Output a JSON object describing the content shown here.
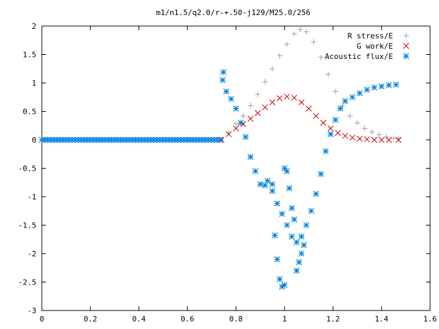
{
  "chart_data": {
    "type": "scatter",
    "title": "m1/n1.5/q2.0/r-+.50-j129/M25.0/256",
    "xlabel": "",
    "ylabel": "",
    "xlim": [
      0,
      1.6
    ],
    "ylim": [
      -3,
      2
    ],
    "x_ticks": [
      0,
      0.2,
      0.4,
      0.6,
      0.8,
      1,
      1.2,
      1.4,
      1.6
    ],
    "y_ticks": [
      -3,
      -2.5,
      -2,
      -1.5,
      -1,
      -0.5,
      0,
      0.5,
      1,
      1.5,
      2
    ],
    "grid": false,
    "legend_position": "top-right",
    "series": [
      {
        "name": "R stress/E",
        "marker": "plus",
        "color": "#a0a0a0",
        "points": [
          [
            0.74,
            0.0
          ],
          [
            0.77,
            0.12
          ],
          [
            0.8,
            0.28
          ],
          [
            0.83,
            0.42
          ],
          [
            0.86,
            0.6
          ],
          [
            0.89,
            0.8
          ],
          [
            0.92,
            1.02
          ],
          [
            0.95,
            1.25
          ],
          [
            0.98,
            1.48
          ],
          [
            1.01,
            1.68
          ],
          [
            1.04,
            1.86
          ],
          [
            1.065,
            1.94
          ],
          [
            1.09,
            1.9
          ],
          [
            1.12,
            1.72
          ],
          [
            1.15,
            1.45
          ],
          [
            1.18,
            1.15
          ],
          [
            1.21,
            0.85
          ],
          [
            1.24,
            0.6
          ],
          [
            1.27,
            0.42
          ],
          [
            1.3,
            0.3
          ],
          [
            1.33,
            0.2
          ],
          [
            1.36,
            0.14
          ],
          [
            1.39,
            0.09
          ],
          [
            1.42,
            0.05
          ],
          [
            1.45,
            0.03
          ],
          [
            1.47,
            0.02
          ]
        ]
      },
      {
        "name": "G work/E",
        "marker": "cross",
        "color": "#cc0000",
        "points": [
          [
            0.74,
            0.0
          ],
          [
            0.77,
            0.1
          ],
          [
            0.8,
            0.2
          ],
          [
            0.83,
            0.28
          ],
          [
            0.86,
            0.37
          ],
          [
            0.89,
            0.47
          ],
          [
            0.92,
            0.57
          ],
          [
            0.95,
            0.66
          ],
          [
            0.98,
            0.73
          ],
          [
            1.01,
            0.76
          ],
          [
            1.04,
            0.74
          ],
          [
            1.07,
            0.66
          ],
          [
            1.1,
            0.55
          ],
          [
            1.13,
            0.42
          ],
          [
            1.16,
            0.3
          ],
          [
            1.19,
            0.2
          ],
          [
            1.22,
            0.12
          ],
          [
            1.25,
            0.07
          ],
          [
            1.28,
            0.04
          ],
          [
            1.31,
            0.02
          ],
          [
            1.34,
            0.01
          ],
          [
            1.37,
            0.0
          ],
          [
            1.4,
            0.0
          ],
          [
            1.43,
            0.0
          ],
          [
            1.47,
            0.0
          ]
        ]
      },
      {
        "name": "Acoustic flux/E",
        "marker": "star",
        "color": "#0080dd",
        "points": [
          [
            0.745,
            1.05
          ],
          [
            0.748,
            1.19
          ],
          [
            0.76,
            0.85
          ],
          [
            0.78,
            0.72
          ],
          [
            0.8,
            0.55
          ],
          [
            0.82,
            0.3
          ],
          [
            0.84,
            0.05
          ],
          [
            0.86,
            -0.3
          ],
          [
            0.88,
            -0.55
          ],
          [
            0.9,
            -0.78
          ],
          [
            0.92,
            -0.8
          ],
          [
            0.93,
            -0.72
          ],
          [
            0.95,
            -0.9
          ],
          [
            0.97,
            -1.12
          ],
          [
            0.99,
            -1.3
          ],
          [
            1.01,
            -1.5
          ],
          [
            1.03,
            -1.7
          ],
          [
            1.05,
            -1.8
          ],
          [
            1.07,
            -1.7
          ],
          [
            1.09,
            -1.5
          ],
          [
            1.11,
            -1.25
          ],
          [
            1.13,
            -0.95
          ],
          [
            1.15,
            -0.6
          ],
          [
            1.17,
            -0.2
          ],
          [
            1.19,
            0.1
          ],
          [
            1.21,
            0.35
          ],
          [
            1.23,
            0.55
          ],
          [
            1.25,
            0.68
          ],
          [
            1.28,
            0.75
          ],
          [
            1.31,
            0.82
          ],
          [
            1.34,
            0.88
          ],
          [
            1.37,
            0.92
          ],
          [
            1.4,
            0.94
          ],
          [
            1.43,
            0.96
          ],
          [
            1.46,
            0.97
          ],
          [
            0.95,
            -0.78
          ],
          [
            0.96,
            -1.68
          ],
          [
            0.97,
            -2.1
          ],
          [
            0.98,
            -2.45
          ],
          [
            0.99,
            -2.58
          ],
          [
            1.0,
            -2.55
          ],
          [
            1.0,
            -0.5
          ],
          [
            1.01,
            -0.55
          ],
          [
            1.02,
            -0.85
          ],
          [
            1.03,
            -1.2
          ],
          [
            1.04,
            -1.4
          ],
          [
            1.05,
            -2.3
          ],
          [
            1.06,
            -2.15
          ],
          [
            1.07,
            -2.0
          ],
          [
            1.08,
            -1.85
          ]
        ]
      },
      {
        "name": "",
        "marker": "line",
        "color": "#00aa00",
        "points": [
          [
            0.0,
            0.0
          ],
          [
            0.735,
            0.0
          ]
        ]
      }
    ],
    "baseline_markers": {
      "color": "#0080dd",
      "x_start": 0.0,
      "x_end": 0.735,
      "y": 0.0,
      "count": 60
    }
  }
}
